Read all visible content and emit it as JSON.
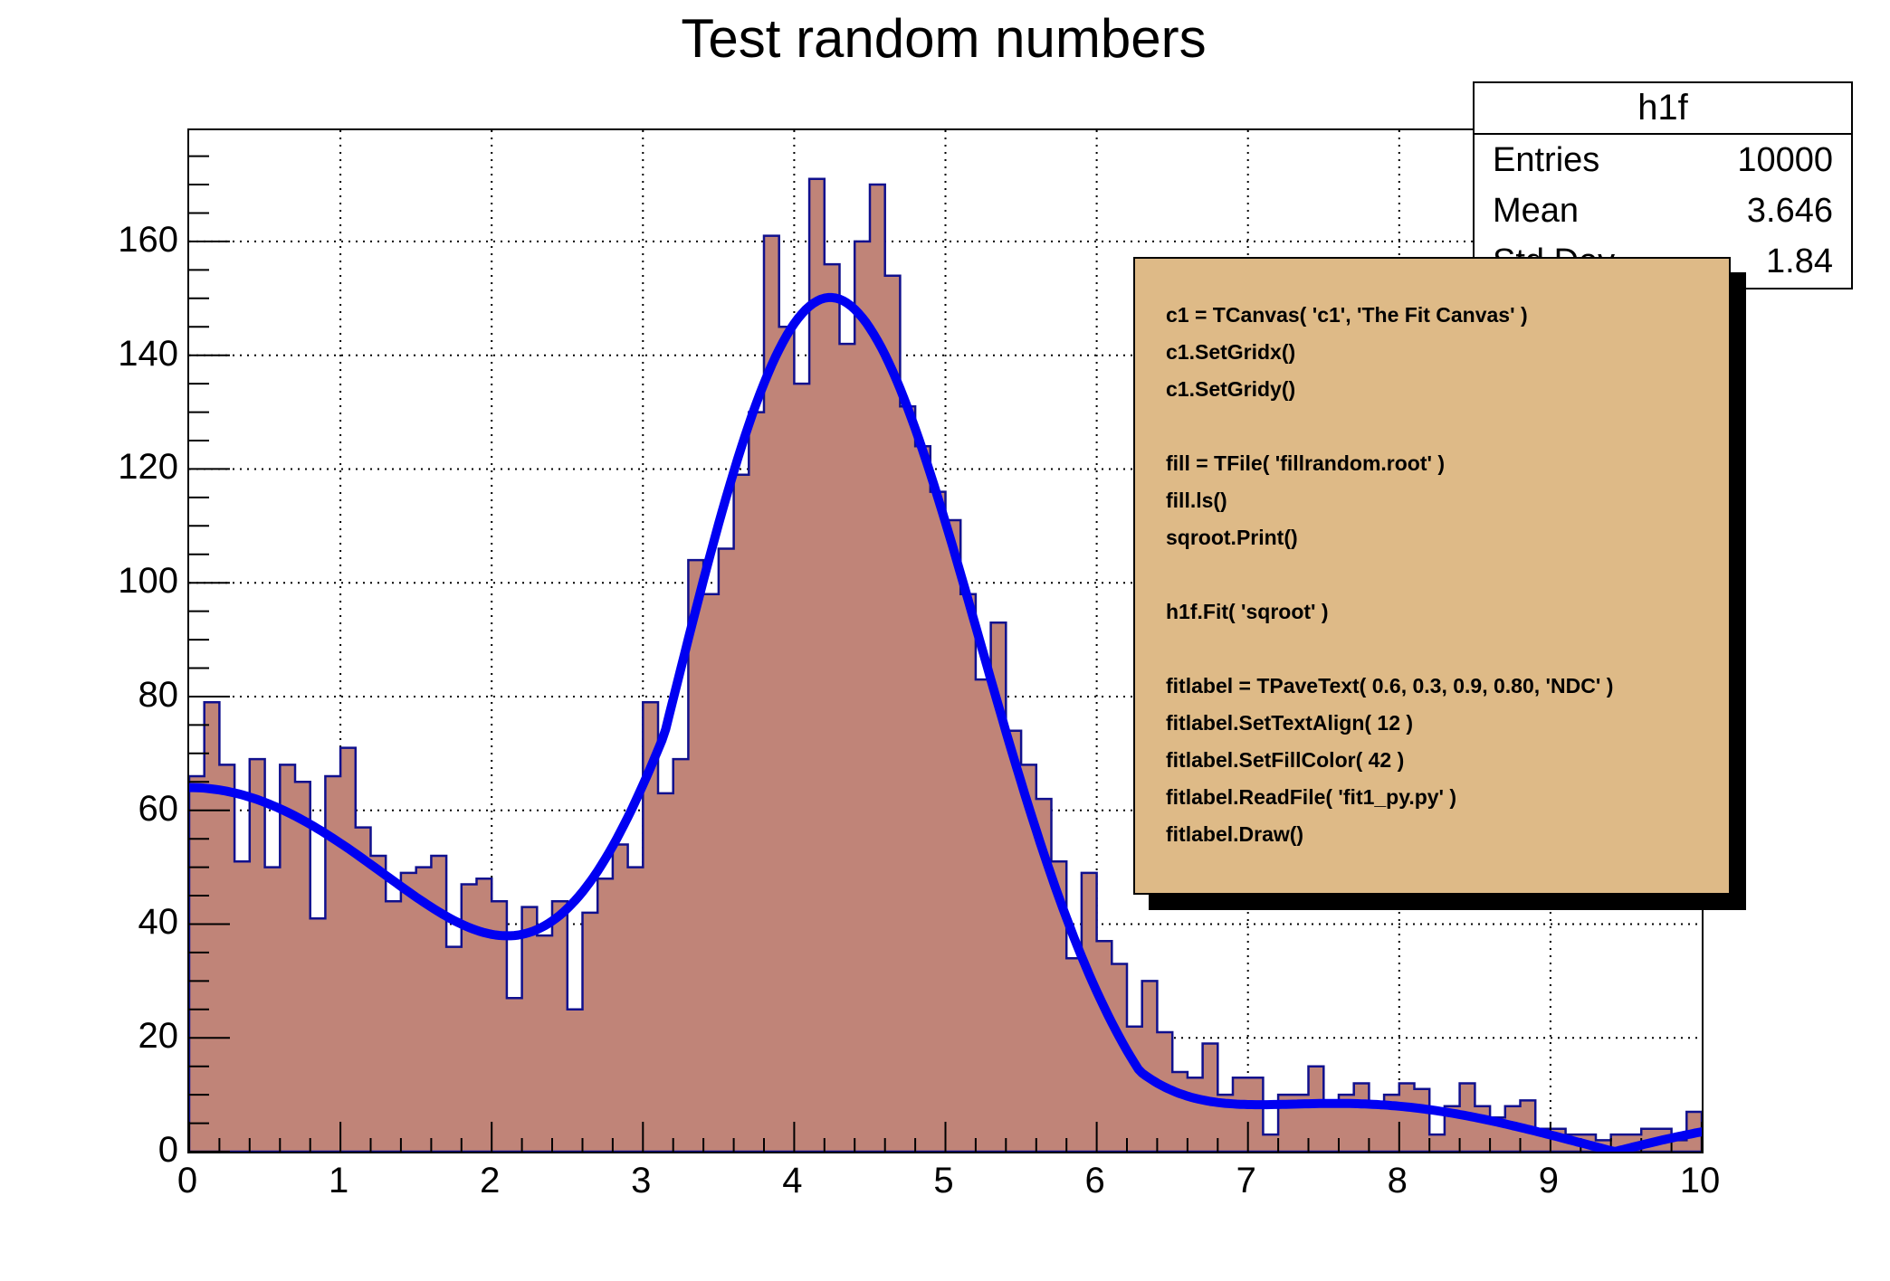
{
  "canvas": {
    "title": "Test random numbers",
    "background": "#ffffff"
  },
  "stats_box": {
    "title": "h1f",
    "rows": [
      {
        "label": "Entries",
        "value": "10000"
      },
      {
        "label": "Mean",
        "value": "3.646"
      },
      {
        "label": "Std Dev",
        "value": "1.84"
      }
    ]
  },
  "code_pave": {
    "fill_color": "#deba87",
    "lines": [
      "c1 = TCanvas( 'c1', 'The Fit Canvas' )",
      "c1.SetGridx()",
      "c1.SetGridy()",
      "",
      "fill = TFile( 'fillrandom.root' )",
      "fill.ls()",
      "sqroot.Print()",
      "",
      "h1f.Fit( 'sqroot' )",
      "",
      "fitlabel = TPaveText( 0.6, 0.3, 0.9, 0.80, 'NDC' )",
      "fitlabel.SetTextAlign( 12 )",
      "fitlabel.SetFillColor( 42 )",
      "fitlabel.ReadFile( 'fit1_py.py' )",
      "fitlabel.Draw()"
    ]
  },
  "chart_data": {
    "type": "bar",
    "title": "Test random numbers",
    "histogram_name": "h1f",
    "xlabel": "",
    "ylabel": "",
    "xlim": [
      0,
      10
    ],
    "ylim": [
      0,
      179.55
    ],
    "bin_width": 0.1,
    "grid": true,
    "x_ticks": [
      0,
      1,
      2,
      3,
      4,
      5,
      6,
      7,
      8,
      9,
      10
    ],
    "y_ticks": [
      0,
      20,
      40,
      60,
      80,
      100,
      120,
      140,
      160
    ],
    "x_minor_step": 0.2,
    "y_minor_step": 5,
    "bar_fill": "#c08478",
    "bar_line": "#10108e",
    "grid_color": "#000000",
    "values": [
      66,
      79,
      68,
      51,
      69,
      50,
      68,
      65,
      41,
      66,
      71,
      57,
      52,
      44,
      49,
      50,
      52,
      36,
      47,
      48,
      44,
      27,
      43,
      38,
      44,
      25,
      42,
      48,
      54,
      50,
      79,
      63,
      69,
      104,
      98,
      106,
      119,
      130,
      161,
      145,
      135,
      171,
      156,
      142,
      160,
      170,
      154,
      131,
      124,
      116,
      111,
      98,
      83,
      93,
      74,
      68,
      62,
      51,
      34,
      49,
      37,
      33,
      22,
      30,
      21,
      14,
      13,
      19,
      10,
      13,
      13,
      3,
      10,
      10,
      15,
      9,
      10,
      12,
      8,
      10,
      12,
      11,
      3,
      8,
      12,
      8,
      6,
      8,
      9,
      4,
      4,
      3,
      3,
      2,
      3,
      3,
      4,
      4,
      2,
      7
    ],
    "fit_curve": {
      "name": "sqroot",
      "color": "#0000f2",
      "line_width": 10,
      "formula": "A*x*exp(-0.5*((x-mu)/sigma)^2) + B*abs(sin(x)/x)",
      "A": 33.37,
      "mu": 3.98,
      "sigma": 0.992,
      "B": 64
    }
  }
}
